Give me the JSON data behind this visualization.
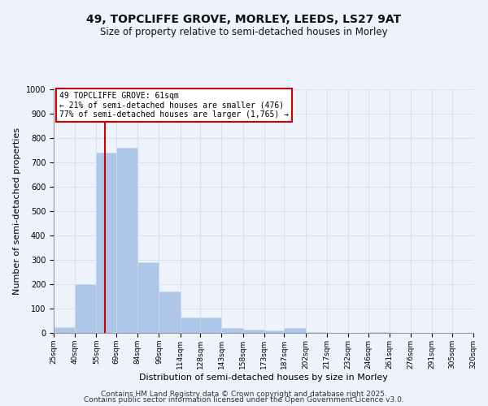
{
  "title": "49, TOPCLIFFE GROVE, MORLEY, LEEDS, LS27 9AT",
  "subtitle": "Size of property relative to semi-detached houses in Morley",
  "xlabel": "Distribution of semi-detached houses by size in Morley",
  "ylabel": "Number of semi-detached properties",
  "bin_labels": [
    "25sqm",
    "40sqm",
    "55sqm",
    "69sqm",
    "84sqm",
    "99sqm",
    "114sqm",
    "128sqm",
    "143sqm",
    "158sqm",
    "173sqm",
    "187sqm",
    "202sqm",
    "217sqm",
    "232sqm",
    "246sqm",
    "261sqm",
    "276sqm",
    "291sqm",
    "305sqm",
    "320sqm"
  ],
  "bin_edges": [
    25,
    40,
    55,
    69,
    84,
    99,
    114,
    128,
    143,
    158,
    173,
    187,
    202,
    217,
    232,
    246,
    261,
    276,
    291,
    305,
    320
  ],
  "bar_heights": [
    25,
    200,
    740,
    760,
    290,
    170,
    65,
    65,
    20,
    15,
    10,
    20,
    5,
    0,
    0,
    5,
    0,
    0,
    0,
    0
  ],
  "bar_color": "#aec6e8",
  "bar_edge_color": "#c8d8ee",
  "grid_color": "#d0d8e8",
  "background_color": "#eef2fb",
  "vline_x": 61,
  "vline_color": "#cc0000",
  "annotation_text": "49 TOPCLIFFE GROVE: 61sqm\n← 21% of semi-detached houses are smaller (476)\n77% of semi-detached houses are larger (1,765) →",
  "annotation_box_color": "#cc0000",
  "ylim": [
    0,
    1000
  ],
  "yticks": [
    0,
    100,
    200,
    300,
    400,
    500,
    600,
    700,
    800,
    900,
    1000
  ],
  "footer_line1": "Contains HM Land Registry data © Crown copyright and database right 2025.",
  "footer_line2": "Contains public sector information licensed under the Open Government Licence v3.0."
}
